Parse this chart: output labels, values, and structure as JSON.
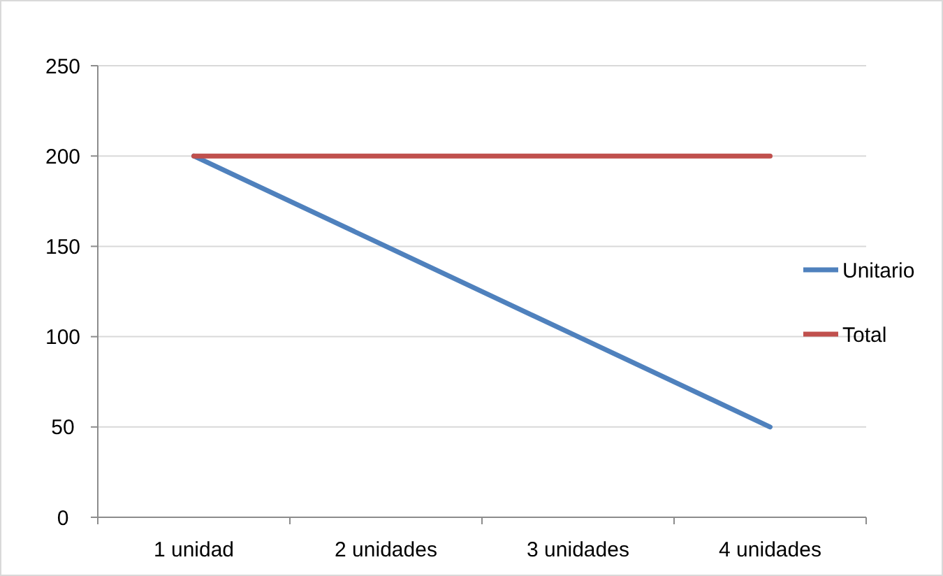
{
  "chart_data": {
    "type": "line",
    "categories": [
      "1 unidad",
      "2 unidades",
      "3 unidades",
      "4 unidades"
    ],
    "series": [
      {
        "name": "Unitario",
        "color": "#4f81bd",
        "values": [
          200,
          150,
          100,
          50
        ]
      },
      {
        "name": "Total",
        "color": "#c0504d",
        "values": [
          200,
          200,
          200,
          200
        ]
      }
    ],
    "ylim": [
      0,
      250
    ],
    "yticks": [
      0,
      50,
      100,
      150,
      200,
      250
    ],
    "grid": "y",
    "legend": "right",
    "marker": "none",
    "line_style": "solid"
  }
}
